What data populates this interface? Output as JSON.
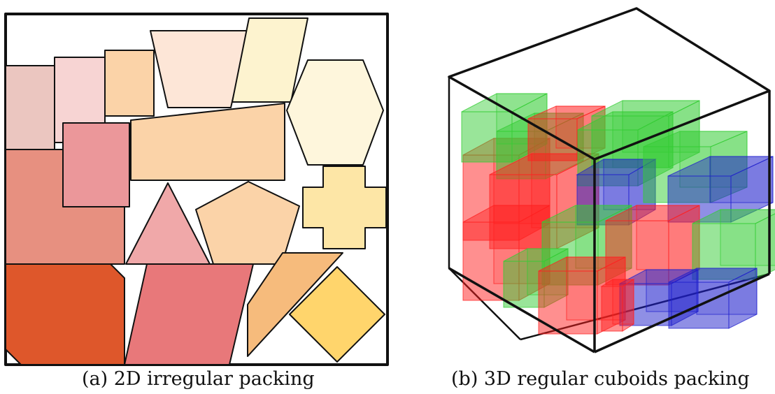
{
  "figure": {
    "panel_a": {
      "caption": "(a) 2D irregular packing",
      "shape_colors": {
        "rose_light": "#ebc6c0",
        "pink_pale": "#f7d4d3",
        "peach": "#fbd3a8",
        "peach_pale": "#fde6d7",
        "cream": "#fdf3cf",
        "cream_light": "#fef6dc",
        "pink_mid": "#eb979a",
        "salmon": "#e79080",
        "pink_tri": "#f0a8a9",
        "yellow_light": "#fde6a6",
        "orange_deep": "#de572b",
        "coral": "#e8787a",
        "tan_orange": "#f6bb7c",
        "gold": "#ffd56c"
      }
    },
    "panel_b": {
      "caption": "(b) 3D regular cuboids packing",
      "cuboid_colors": {
        "red": "#ff2020",
        "green": "#33cc33",
        "blue": "#2020cc"
      }
    }
  }
}
